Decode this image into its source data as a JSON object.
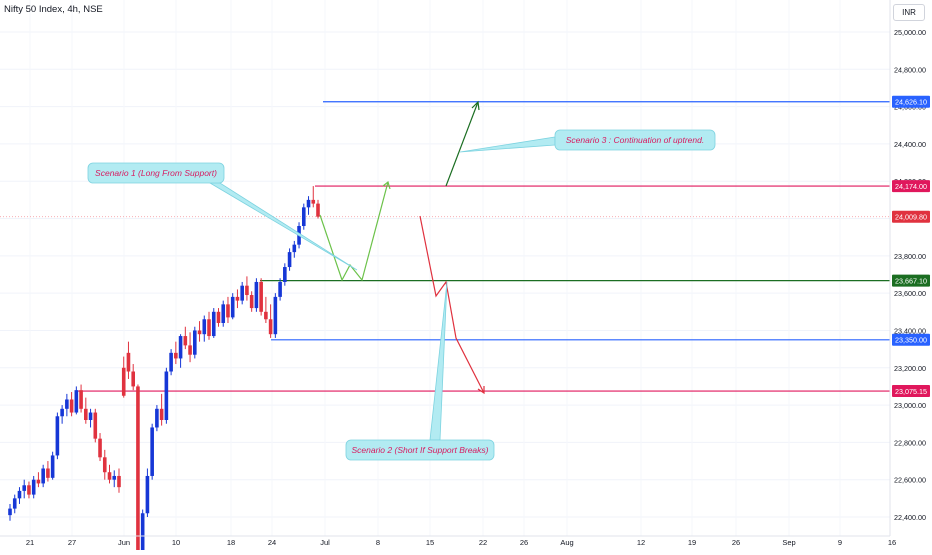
{
  "header": {
    "title": "Nifty 50 Index, 4h, NSE",
    "currency": "INR"
  },
  "colors": {
    "up": "#1637d6",
    "down": "#e0323f",
    "resistance_red": "#e0175c",
    "support_blue": "#2962ff",
    "support_green": "#1b6e22",
    "scenario_green": "#6cc24a",
    "scenario_red": "#e0323f",
    "arrow_dark_green": "#1b6e22",
    "callout_fill": "#b2ebf2",
    "callout_text": "#d81b60"
  },
  "chart_data": {
    "type": "candlestick",
    "x_ticks": [
      "21",
      "27",
      "Jun",
      "10",
      "18",
      "24",
      "Jul",
      "8",
      "15",
      "22",
      "26",
      "Aug",
      "12",
      "19",
      "26",
      "Sep",
      "9",
      "16"
    ],
    "y_ticks": [
      "25,000.00",
      "24,800.00",
      "24,600.00",
      "24,400.00",
      "24,200.00",
      "24,000.00",
      "23,800.00",
      "23,600.00",
      "23,400.00",
      "23,200.00",
      "23,000.00",
      "22,800.00",
      "22,600.00",
      "22,400.00"
    ],
    "ylim": [
      22320,
      25070
    ],
    "candles": [
      [
        22410,
        22470,
        22380,
        22445
      ],
      [
        22445,
        22520,
        22420,
        22500
      ],
      [
        22500,
        22560,
        22470,
        22540
      ],
      [
        22540,
        22600,
        22500,
        22570
      ],
      [
        22570,
        22590,
        22500,
        22520
      ],
      [
        22520,
        22620,
        22500,
        22600
      ],
      [
        22600,
        22640,
        22560,
        22580
      ],
      [
        22580,
        22680,
        22560,
        22660
      ],
      [
        22660,
        22700,
        22590,
        22610
      ],
      [
        22610,
        22750,
        22600,
        22730
      ],
      [
        22730,
        22960,
        22710,
        22940
      ],
      [
        22940,
        23000,
        22900,
        22980
      ],
      [
        22980,
        23060,
        22940,
        23030
      ],
      [
        23030,
        23070,
        22940,
        22960
      ],
      [
        22960,
        23100,
        22950,
        23080
      ],
      [
        23080,
        23110,
        22960,
        22980
      ],
      [
        22980,
        23040,
        22900,
        22920
      ],
      [
        22920,
        22980,
        22880,
        22960
      ],
      [
        22960,
        22980,
        22800,
        22820
      ],
      [
        22820,
        22850,
        22700,
        22720
      ],
      [
        22720,
        22760,
        22600,
        22640
      ],
      [
        22640,
        22680,
        22580,
        22600
      ],
      [
        22600,
        22650,
        22560,
        22620
      ],
      [
        22620,
        22660,
        22530,
        22560
      ],
      [
        23200,
        23260,
        23040,
        23050
      ],
      [
        23280,
        23340,
        23140,
        23180
      ],
      [
        23180,
        23220,
        23080,
        23100
      ],
      [
        23100,
        23110,
        22120,
        22180
      ],
      [
        22180,
        22440,
        22160,
        22420
      ],
      [
        22420,
        22660,
        22400,
        22620
      ],
      [
        22620,
        22900,
        22600,
        22880
      ],
      [
        22880,
        23000,
        22860,
        22980
      ],
      [
        22980,
        23060,
        22890,
        22920
      ],
      [
        22920,
        23200,
        22900,
        23180
      ],
      [
        23180,
        23300,
        23160,
        23280
      ],
      [
        23280,
        23340,
        23220,
        23250
      ],
      [
        23250,
        23380,
        23200,
        23370
      ],
      [
        23370,
        23420,
        23300,
        23320
      ],
      [
        23320,
        23390,
        23230,
        23270
      ],
      [
        23270,
        23420,
        23250,
        23400
      ],
      [
        23400,
        23450,
        23340,
        23380
      ],
      [
        23380,
        23480,
        23340,
        23460
      ],
      [
        23460,
        23500,
        23350,
        23370
      ],
      [
        23370,
        23520,
        23360,
        23500
      ],
      [
        23500,
        23520,
        23420,
        23440
      ],
      [
        23440,
        23560,
        23420,
        23540
      ],
      [
        23540,
        23580,
        23440,
        23470
      ],
      [
        23470,
        23600,
        23460,
        23580
      ],
      [
        23580,
        23620,
        23520,
        23560
      ],
      [
        23560,
        23660,
        23540,
        23640
      ],
      [
        23640,
        23690,
        23560,
        23590
      ],
      [
        23590,
        23610,
        23500,
        23520
      ],
      [
        23520,
        23680,
        23500,
        23660
      ],
      [
        23660,
        23680,
        23480,
        23500
      ],
      [
        23500,
        23580,
        23440,
        23460
      ],
      [
        23460,
        23540,
        23360,
        23380
      ],
      [
        23380,
        23600,
        23360,
        23580
      ],
      [
        23580,
        23680,
        23560,
        23660
      ],
      [
        23660,
        23760,
        23640,
        23740
      ],
      [
        23740,
        23840,
        23720,
        23820
      ],
      [
        23820,
        23880,
        23790,
        23860
      ],
      [
        23860,
        23980,
        23840,
        23960
      ],
      [
        23960,
        24080,
        23940,
        24060
      ],
      [
        24060,
        24120,
        24020,
        24100
      ],
      [
        24100,
        24174,
        24060,
        24080
      ],
      [
        24080,
        24100,
        24000,
        24010
      ]
    ],
    "levels": [
      {
        "value": 24626.1,
        "label": "24,626.10",
        "color": "#2962ff"
      },
      {
        "value": 24174.0,
        "label": "24,174.00",
        "color": "#e0175c"
      },
      {
        "value": 24009.8,
        "label": "24,009.80",
        "color": "#e0323f"
      },
      {
        "value": 23667.1,
        "label": "23,667.10",
        "color": "#1b6e22"
      },
      {
        "value": 23350.0,
        "label": "23,350.00",
        "color": "#2962ff"
      },
      {
        "value": 23075.15,
        "label": "23,075.15",
        "color": "#e0175c"
      }
    ],
    "annotations": [
      "Scenario 1 (Long From Support)",
      "Scenario 2 (Short If Support Breaks)",
      "Scenario 3 : Continuation of uptrend."
    ]
  }
}
